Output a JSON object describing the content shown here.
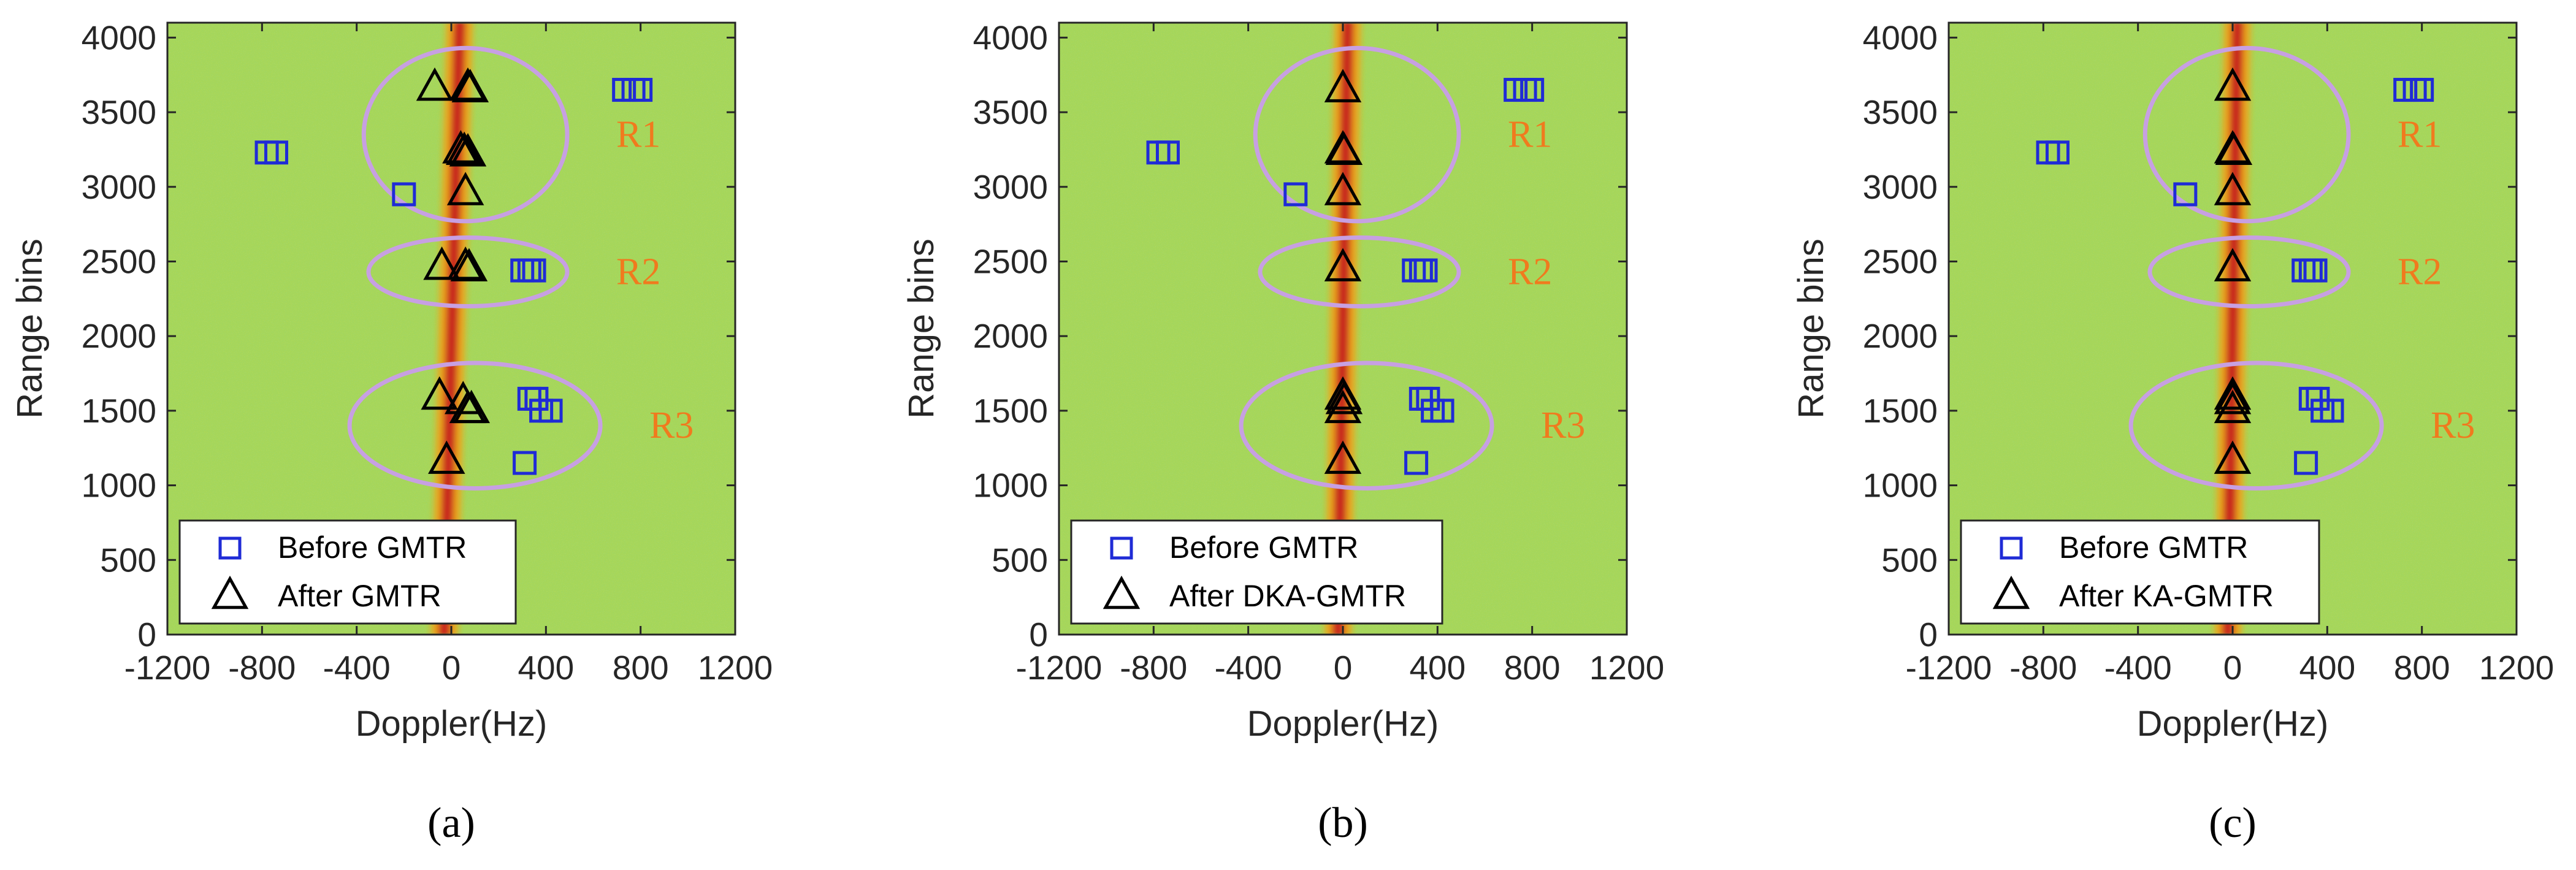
{
  "colors": {
    "background": "#a4d65a",
    "clutter_center": "#c8281e",
    "clutter_edge": "#f2a218",
    "before_marker": "#1f2bd6",
    "after_marker": "#000000",
    "region_ellipse": "#c7a0e2",
    "region_label": "#f07a1e"
  },
  "chart_data": [
    {
      "type": "scatter",
      "caption": "(a)",
      "xlabel": "Doppler(Hz)",
      "ylabel": "Range bins",
      "xlim": [
        -1200,
        1200
      ],
      "ylim": [
        0,
        4100
      ],
      "xticks": [
        "-1200",
        "-800",
        "-400",
        "0",
        "400",
        "800",
        "1200"
      ],
      "yticks": [
        "0",
        "500",
        "1000",
        "1500",
        "2000",
        "2500",
        "3000",
        "3500",
        "4000"
      ],
      "clutter_doppler": [
        35,
        -30
      ],
      "series": [
        {
          "name": "Before GMTR",
          "marker": "square",
          "points": [
            [
              -780,
              3230
            ],
            [
              -740,
              3230
            ],
            [
              730,
              3650
            ],
            [
              770,
              3650
            ],
            [
              800,
              3650
            ],
            [
              -200,
              2950
            ],
            [
              300,
              2440
            ],
            [
              330,
              2440
            ],
            [
              350,
              2440
            ],
            [
              330,
              1580
            ],
            [
              360,
              1580
            ],
            [
              380,
              1500
            ],
            [
              420,
              1500
            ],
            [
              310,
              1150
            ]
          ]
        },
        {
          "name": "After GMTR",
          "marker": "triangle",
          "points": [
            [
              -70,
              3660
            ],
            [
              70,
              3660
            ],
            [
              80,
              3650
            ],
            [
              40,
              3240
            ],
            [
              55,
              3230
            ],
            [
              70,
              3220
            ],
            [
              60,
              2960
            ],
            [
              -40,
              2460
            ],
            [
              60,
              2460
            ],
            [
              75,
              2450
            ],
            [
              -50,
              1590
            ],
            [
              50,
              1560
            ],
            [
              70,
              1500
            ],
            [
              85,
              1500
            ],
            [
              -20,
              1160
            ]
          ]
        }
      ],
      "regions": [
        {
          "label": "R1",
          "center": [
            60,
            3350
          ],
          "radii": [
            430,
            580
          ]
        },
        {
          "label": "R2",
          "center": [
            70,
            2430
          ],
          "radii": [
            420,
            230
          ]
        },
        {
          "label": "R3",
          "center": [
            100,
            1400
          ],
          "radii": [
            530,
            420
          ]
        }
      ]
    },
    {
      "type": "scatter",
      "caption": "(b)",
      "xlabel": "Doppler(Hz)",
      "ylabel": "Range bins",
      "xlim": [
        -1200,
        1200
      ],
      "ylim": [
        0,
        4100
      ],
      "xticks": [
        "-1200",
        "-800",
        "-400",
        "0",
        "400",
        "800",
        "1200"
      ],
      "yticks": [
        "0",
        "500",
        "1000",
        "1500",
        "2000",
        "2500",
        "3000",
        "3500",
        "4000"
      ],
      "clutter_doppler": [
        20,
        -20
      ],
      "series": [
        {
          "name": "Before GMTR",
          "marker": "square",
          "points": [
            [
              -780,
              3230
            ],
            [
              -740,
              3230
            ],
            [
              730,
              3650
            ],
            [
              770,
              3650
            ],
            [
              800,
              3650
            ],
            [
              -200,
              2950
            ],
            [
              300,
              2440
            ],
            [
              330,
              2440
            ],
            [
              350,
              2440
            ],
            [
              330,
              1580
            ],
            [
              360,
              1580
            ],
            [
              380,
              1500
            ],
            [
              420,
              1500
            ],
            [
              310,
              1150
            ]
          ]
        },
        {
          "name": "After DKA-GMTR",
          "marker": "triangle",
          "points": [
            [
              0,
              3650
            ],
            [
              0,
              3240
            ],
            [
              5,
              3230
            ],
            [
              0,
              2960
            ],
            [
              0,
              2450
            ],
            [
              0,
              1590
            ],
            [
              5,
              1560
            ],
            [
              0,
              1500
            ],
            [
              0,
              1160
            ]
          ]
        }
      ],
      "regions": [
        {
          "label": "R1",
          "center": [
            60,
            3350
          ],
          "radii": [
            430,
            580
          ]
        },
        {
          "label": "R2",
          "center": [
            70,
            2430
          ],
          "radii": [
            420,
            230
          ]
        },
        {
          "label": "R3",
          "center": [
            100,
            1400
          ],
          "radii": [
            530,
            420
          ]
        }
      ]
    },
    {
      "type": "scatter",
      "caption": "(c)",
      "xlabel": "Doppler(Hz)",
      "ylabel": "Range bins",
      "xlim": [
        -1200,
        1200
      ],
      "ylim": [
        0,
        4100
      ],
      "xticks": [
        "-1200",
        "-800",
        "-400",
        "0",
        "400",
        "800",
        "1200"
      ],
      "yticks": [
        "0",
        "500",
        "1000",
        "1500",
        "2000",
        "2500",
        "3000",
        "3500",
        "4000"
      ],
      "clutter_doppler": [
        20,
        -20
      ],
      "series": [
        {
          "name": "Before GMTR",
          "marker": "square",
          "points": [
            [
              -780,
              3230
            ],
            [
              -740,
              3230
            ],
            [
              730,
              3650
            ],
            [
              770,
              3650
            ],
            [
              800,
              3650
            ],
            [
              -200,
              2950
            ],
            [
              300,
              2440
            ],
            [
              330,
              2440
            ],
            [
              350,
              2440
            ],
            [
              330,
              1580
            ],
            [
              360,
              1580
            ],
            [
              380,
              1500
            ],
            [
              420,
              1500
            ],
            [
              310,
              1150
            ]
          ]
        },
        {
          "name": "After KA-GMTR",
          "marker": "triangle",
          "points": [
            [
              0,
              3660
            ],
            [
              0,
              3240
            ],
            [
              5,
              3230
            ],
            [
              0,
              2960
            ],
            [
              0,
              2450
            ],
            [
              0,
              1590
            ],
            [
              0,
              1560
            ],
            [
              0,
              1500
            ],
            [
              0,
              1160
            ]
          ]
        }
      ],
      "regions": [
        {
          "label": "R1",
          "center": [
            60,
            3350
          ],
          "radii": [
            430,
            580
          ]
        },
        {
          "label": "R2",
          "center": [
            70,
            2430
          ],
          "radii": [
            420,
            230
          ]
        },
        {
          "label": "R3",
          "center": [
            100,
            1400
          ],
          "radii": [
            530,
            420
          ]
        }
      ]
    }
  ]
}
